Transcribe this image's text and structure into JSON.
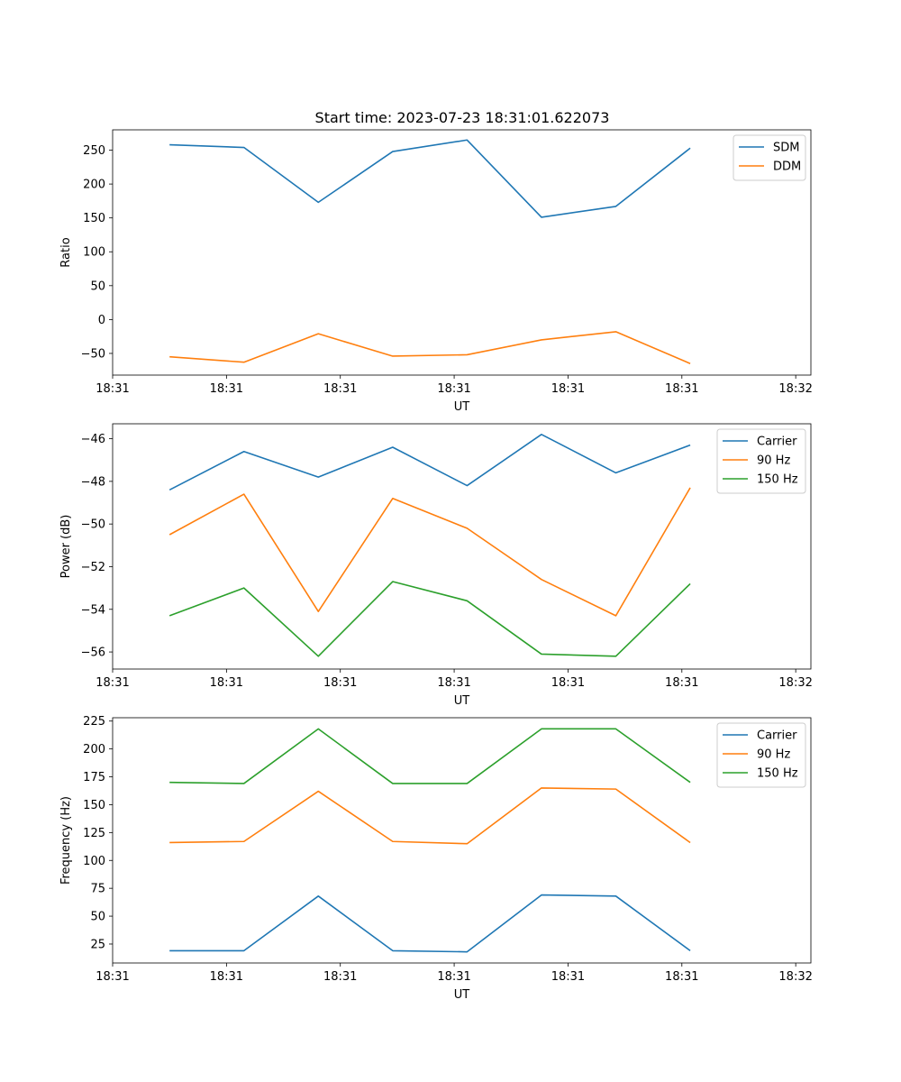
{
  "figure_title": "Start time: 2023-07-23 18:31:01.622073",
  "chart_data": [
    {
      "type": "line",
      "title": "Start time: 2023-07-23 18:31:01.622073",
      "xlabel": "UT",
      "ylabel": "Ratio",
      "legend": "top-right",
      "grid": false,
      "xlim": [
        0,
        9.2
      ],
      "ylim": [
        -82,
        280
      ],
      "xticks": [
        0.0,
        1.5,
        3.0,
        4.5,
        6.0,
        7.5,
        9.0
      ],
      "xtick_labels": [
        "18:31",
        "18:31",
        "18:31",
        "18:31",
        "18:31",
        "18:31",
        "18:32"
      ],
      "yticks": [
        -50,
        0,
        50,
        100,
        150,
        200,
        250
      ],
      "x": [
        0.75,
        1.73,
        2.71,
        3.69,
        4.67,
        5.65,
        6.63,
        7.61
      ],
      "series": [
        {
          "name": "SDM",
          "color": "#1f77b4",
          "values": [
            258,
            254,
            173,
            248,
            265,
            151,
            167,
            253
          ]
        },
        {
          "name": "DDM",
          "color": "#ff7f0e",
          "values": [
            -55,
            -63,
            -21,
            -54,
            -52,
            -30,
            -18,
            -65
          ]
        }
      ]
    },
    {
      "type": "line",
      "title": "",
      "xlabel": "UT",
      "ylabel": "Power (dB)",
      "legend": "top-right",
      "grid": false,
      "xlim": [
        0,
        9.2
      ],
      "ylim": [
        -56.8,
        -45.3
      ],
      "xticks": [
        0.0,
        1.5,
        3.0,
        4.5,
        6.0,
        7.5,
        9.0
      ],
      "xtick_labels": [
        "18:31",
        "18:31",
        "18:31",
        "18:31",
        "18:31",
        "18:31",
        "18:32"
      ],
      "yticks": [
        -56,
        -54,
        -52,
        -50,
        -48,
        -46
      ],
      "x": [
        0.75,
        1.73,
        2.71,
        3.69,
        4.67,
        5.65,
        6.63,
        7.61
      ],
      "series": [
        {
          "name": "Carrier",
          "color": "#1f77b4",
          "values": [
            -48.4,
            -46.6,
            -47.8,
            -46.4,
            -48.2,
            -45.8,
            -47.6,
            -46.3
          ]
        },
        {
          "name": "90 Hz",
          "color": "#ff7f0e",
          "values": [
            -50.5,
            -48.6,
            -54.1,
            -48.8,
            -50.2,
            -52.6,
            -54.3,
            -48.3
          ]
        },
        {
          "name": "150 Hz",
          "color": "#2ca02c",
          "values": [
            -54.3,
            -53.0,
            -56.2,
            -52.7,
            -53.6,
            -56.1,
            -56.2,
            -52.8
          ]
        }
      ]
    },
    {
      "type": "line",
      "title": "",
      "xlabel": "UT",
      "ylabel": "Frequency (Hz)",
      "legend": "top-right",
      "grid": false,
      "xlim": [
        0,
        9.2
      ],
      "ylim": [
        8,
        228
      ],
      "xticks": [
        0.0,
        1.5,
        3.0,
        4.5,
        6.0,
        7.5,
        9.0
      ],
      "xtick_labels": [
        "18:31",
        "18:31",
        "18:31",
        "18:31",
        "18:31",
        "18:31",
        "18:32"
      ],
      "yticks": [
        25,
        50,
        75,
        100,
        125,
        150,
        175,
        200,
        225
      ],
      "x": [
        0.75,
        1.73,
        2.71,
        3.69,
        4.67,
        5.65,
        6.63,
        7.61
      ],
      "series": [
        {
          "name": "Carrier",
          "color": "#1f77b4",
          "values": [
            19,
            19,
            68,
            19,
            18,
            69,
            68,
            19
          ]
        },
        {
          "name": "90 Hz",
          "color": "#ff7f0e",
          "values": [
            116,
            117,
            162,
            117,
            115,
            165,
            164,
            116
          ]
        },
        {
          "name": "150 Hz",
          "color": "#2ca02c",
          "values": [
            170,
            169,
            218,
            169,
            169,
            218,
            218,
            170
          ]
        }
      ]
    }
  ]
}
